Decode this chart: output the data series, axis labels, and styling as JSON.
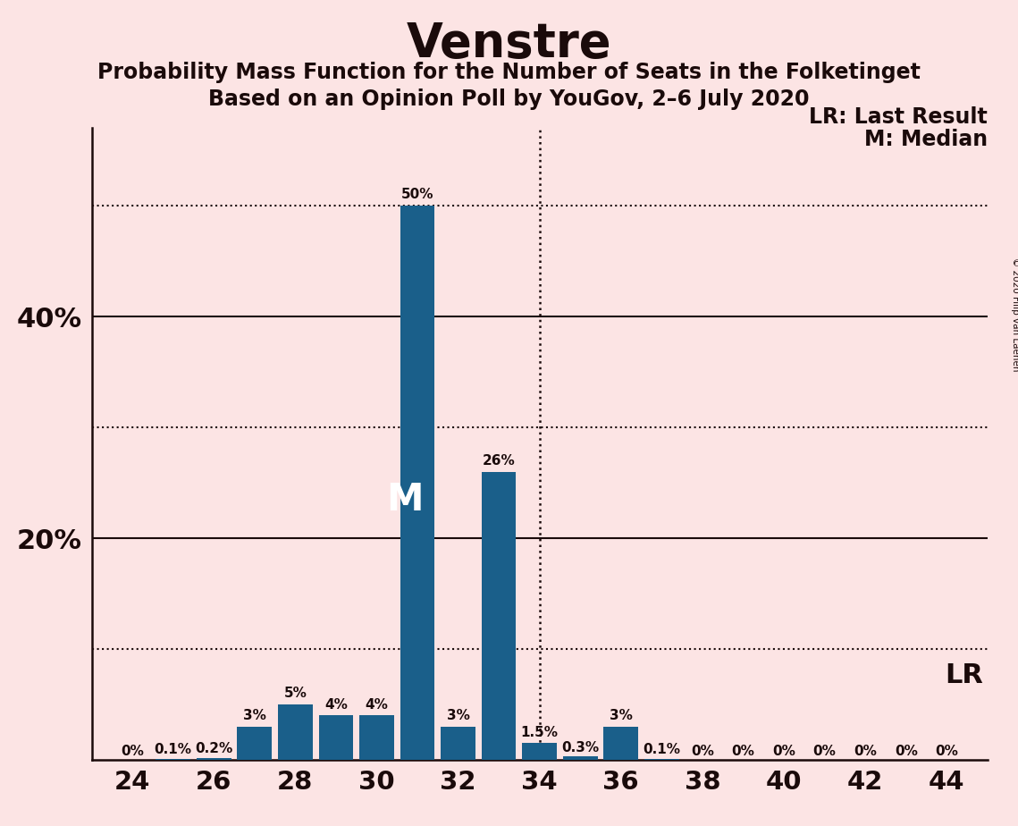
{
  "title": "Venstre",
  "subtitle1": "Probability Mass Function for the Number of Seats in the Folketinget",
  "subtitle2": "Based on an Opinion Poll by YouGov, 2–6 July 2020",
  "copyright": "© 2020 Filip van Laenen",
  "seats": [
    24,
    25,
    26,
    27,
    28,
    29,
    30,
    31,
    32,
    33,
    34,
    35,
    36,
    37,
    38,
    39,
    40,
    41,
    42,
    43,
    44
  ],
  "probabilities": [
    0.0,
    0.1,
    0.2,
    3.0,
    5.0,
    4.0,
    4.0,
    50.0,
    3.0,
    26.0,
    1.5,
    0.3,
    3.0,
    0.1,
    0.0,
    0.0,
    0.0,
    0.0,
    0.0,
    0.0,
    0.0
  ],
  "bar_color": "#1a5f8a",
  "background_color": "#fce4e4",
  "text_color": "#1a0a0a",
  "median_seat": 31,
  "last_result_seat": 34,
  "dotted_lines": [
    10.0,
    30.0,
    50.0
  ],
  "solid_lines": [
    20.0,
    40.0
  ],
  "xlim": [
    23.0,
    45.0
  ],
  "ylim": [
    0,
    57
  ],
  "xtick_positions": [
    24,
    26,
    28,
    30,
    32,
    34,
    36,
    38,
    40,
    42,
    44
  ],
  "bar_labels": [
    "0%",
    "0.1%",
    "0.2%",
    "3%",
    "5%",
    "4%",
    "4%",
    "50%",
    "3%",
    "26%",
    "1.5%",
    "0.3%",
    "3%",
    "0.1%",
    "0%",
    "0%",
    "0%",
    "0%",
    "0%",
    "0%",
    "0%"
  ],
  "lr_label": "LR: Last Result",
  "m_label": "M: Median",
  "lr_short": "LR",
  "m_letter": "M",
  "ytick_vals": [
    20,
    40
  ],
  "ytick_labels": [
    "20%",
    "40%"
  ]
}
